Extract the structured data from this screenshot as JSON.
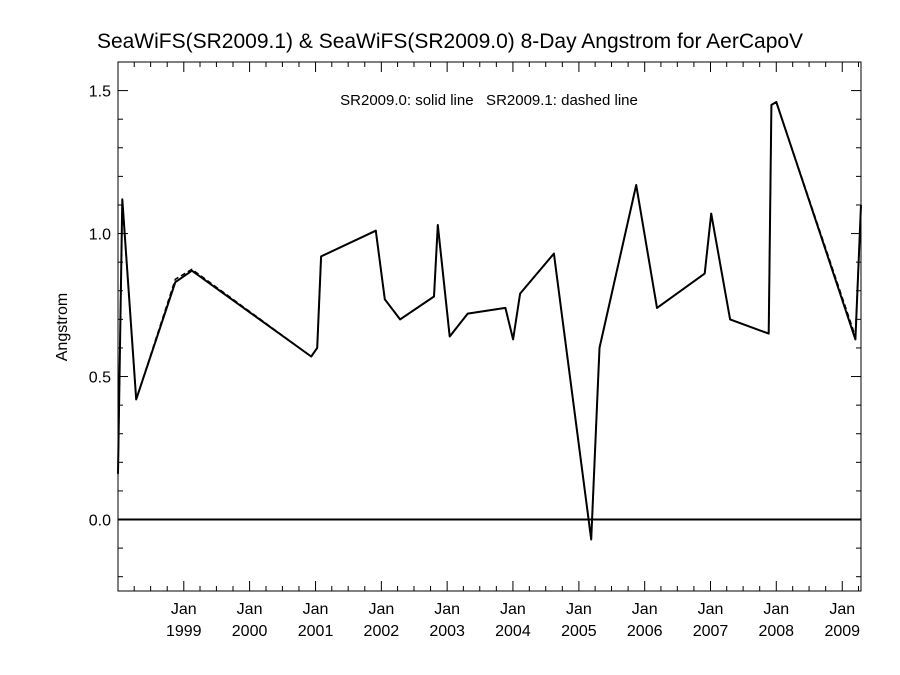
{
  "chart_data": {
    "type": "line",
    "title": "SeaWiFS(SR2009.1) & SeaWiFS(SR2009.0) 8-Day Angstrom for AerCapoV",
    "ylabel": "Angstrom",
    "xlabel": "",
    "annotation": "SR2009.0: solid line   SR2009.1: dashed line",
    "xlim": [
      "1998-01-01",
      "2009-04-15"
    ],
    "ylim": [
      -0.25,
      1.6
    ],
    "yticks": [
      "0.0",
      "0.5",
      "1.0",
      "1.5"
    ],
    "xtick_month": "Jan",
    "xtick_years": [
      "1999",
      "2000",
      "2001",
      "2002",
      "2003",
      "2004",
      "2005",
      "2006",
      "2007",
      "2008",
      "2009"
    ],
    "grid": false,
    "reference_line": {
      "y": 0.0
    },
    "series": [
      {
        "name": "SR2009.0",
        "style": "solid",
        "points": [
          [
            "1998-01-01",
            0.16
          ],
          [
            "1998-01-25",
            1.12
          ],
          [
            "1998-04-12",
            0.42
          ],
          [
            "1998-11-15",
            0.83
          ],
          [
            "1999-02-15",
            0.87
          ],
          [
            "2000-12-08",
            0.57
          ],
          [
            "2001-01-10",
            0.6
          ],
          [
            "2001-02-01",
            0.92
          ],
          [
            "2001-12-01",
            1.01
          ],
          [
            "2002-01-20",
            0.77
          ],
          [
            "2002-04-15",
            0.7
          ],
          [
            "2002-10-20",
            0.78
          ],
          [
            "2002-11-10",
            1.03
          ],
          [
            "2003-01-15",
            0.64
          ],
          [
            "2003-04-25",
            0.72
          ],
          [
            "2003-11-20",
            0.74
          ],
          [
            "2004-01-02",
            0.63
          ],
          [
            "2004-02-10",
            0.79
          ],
          [
            "2004-08-15",
            0.93
          ],
          [
            "2005-03-10",
            -0.07
          ],
          [
            "2005-04-25",
            0.6
          ],
          [
            "2005-11-15",
            1.17
          ],
          [
            "2006-03-10",
            0.74
          ],
          [
            "2006-11-30",
            0.86
          ],
          [
            "2007-01-05",
            1.07
          ],
          [
            "2007-04-20",
            0.7
          ],
          [
            "2007-11-20",
            0.65
          ],
          [
            "2007-12-05",
            1.45
          ],
          [
            "2008-01-01",
            1.46
          ],
          [
            "2009-03-15",
            0.63
          ],
          [
            "2009-04-15",
            1.1
          ]
        ]
      },
      {
        "name": "SR2009.1",
        "style": "dashed",
        "points": [
          [
            "1998-01-01",
            0.16
          ],
          [
            "1998-01-25",
            1.12
          ],
          [
            "1998-04-12",
            0.42
          ],
          [
            "1998-11-15",
            0.84
          ],
          [
            "1999-02-15",
            0.875
          ],
          [
            "2000-12-08",
            0.57
          ],
          [
            "2001-01-10",
            0.6
          ],
          [
            "2001-02-01",
            0.92
          ],
          [
            "2001-12-01",
            1.01
          ],
          [
            "2002-01-20",
            0.77
          ],
          [
            "2002-04-15",
            0.7
          ],
          [
            "2002-10-20",
            0.78
          ],
          [
            "2002-11-10",
            1.03
          ],
          [
            "2003-01-15",
            0.64
          ],
          [
            "2003-04-25",
            0.72
          ],
          [
            "2003-11-20",
            0.74
          ],
          [
            "2004-01-02",
            0.63
          ],
          [
            "2004-02-10",
            0.79
          ],
          [
            "2004-08-15",
            0.93
          ],
          [
            "2005-03-10",
            -0.07
          ],
          [
            "2005-04-25",
            0.6
          ],
          [
            "2005-11-15",
            1.17
          ],
          [
            "2006-03-10",
            0.74
          ],
          [
            "2006-11-30",
            0.86
          ],
          [
            "2007-01-05",
            1.07
          ],
          [
            "2007-04-20",
            0.7
          ],
          [
            "2007-11-20",
            0.65
          ],
          [
            "2007-12-05",
            1.45
          ],
          [
            "2008-01-01",
            1.46
          ],
          [
            "2009-03-15",
            0.64
          ],
          [
            "2009-04-15",
            1.1
          ]
        ]
      }
    ]
  }
}
